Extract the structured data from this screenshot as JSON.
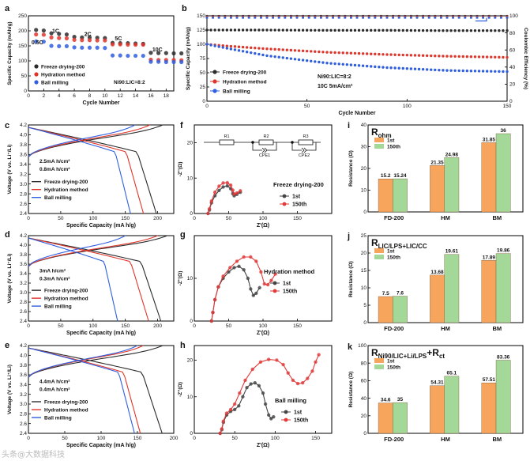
{
  "watermark": "头条@大数据科技",
  "colors": {
    "fd": "#2b2b2b",
    "hm": "#e0352b",
    "bm": "#2f5fe0",
    "ce": "#3a7be0",
    "bar1": "#f7a45c",
    "bar2": "#a3d898",
    "panel_f": "#444444",
    "panel_f2": "#e03a3a"
  },
  "chart_data": [
    {
      "id": "a",
      "type": "scatter",
      "ylabel": "Specific Capacity (mAh/g)",
      "xlabel": "Cycle Number",
      "xlim": [
        0,
        19
      ],
      "ylim": [
        0,
        250
      ],
      "xticks": [
        0,
        2,
        4,
        6,
        8,
        10,
        12,
        14,
        16,
        18
      ],
      "yticks": [
        0,
        50,
        100,
        150,
        200,
        250
      ],
      "rate_labels": [
        {
          "text": "0.5C",
          "x": 0.4,
          "y": 155
        },
        {
          "text": "1C",
          "x": 3.1,
          "y": 194
        },
        {
          "text": "2C",
          "x": 7.3,
          "y": 183
        },
        {
          "text": "5C",
          "x": 11.3,
          "y": 168
        },
        {
          "text": "10C",
          "x": 16.2,
          "y": 131
        }
      ],
      "annotation": "Ni90:LIC=8:2",
      "series": [
        {
          "name": "Freeze drying-200",
          "color_key": "fd",
          "values": [
            203,
            201,
            192,
            190,
            188,
            180,
            178,
            178,
            177,
            176,
            160,
            159,
            159,
            158,
            157,
            127,
            126,
            126,
            125,
            125
          ]
        },
        {
          "name": "Hydration method",
          "color_key": "hm",
          "values": [
            188,
            187,
            178,
            176,
            175,
            170,
            169,
            169,
            168,
            168,
            155,
            155,
            154,
            154,
            154,
            104,
            103,
            103,
            103,
            102
          ]
        },
        {
          "name": "Ball milling",
          "color_key": "bm",
          "values": [
            165,
            164,
            150,
            149,
            149,
            145,
            144,
            144,
            144,
            143,
            118,
            118,
            117,
            117,
            117,
            97,
            97,
            96,
            96,
            96
          ]
        }
      ]
    },
    {
      "id": "b",
      "type": "line",
      "ylabel": "Specific Capacity (mAh/g)",
      "ylabel_right": "Coulombic Efficiency (%)",
      "xlabel": "Cycle Number",
      "xlim": [
        0,
        150
      ],
      "ylim": [
        0,
        150
      ],
      "ylim_right": [
        0,
        100
      ],
      "xticks": [
        0,
        50,
        100,
        150
      ],
      "yticks": [
        0,
        25,
        50,
        75,
        100,
        125,
        150
      ],
      "yticks_right": [
        0,
        20,
        40,
        60,
        80,
        100
      ],
      "annotation": [
        "Ni90:LIC=8:2",
        "10C 5mA/cm²"
      ],
      "series": [
        {
          "name": "Freeze drying-200",
          "color_key": "fd",
          "points": [
            [
              0,
              125
            ],
            [
              30,
              125
            ],
            [
              60,
              124.5
            ],
            [
              90,
              124.5
            ],
            [
              120,
              124
            ],
            [
              150,
              124
            ]
          ]
        },
        {
          "name": "Hydration method",
          "color_key": "hm",
          "points": [
            [
              0,
              100
            ],
            [
              10,
              97
            ],
            [
              30,
              92
            ],
            [
              60,
              86
            ],
            [
              90,
              82
            ],
            [
              120,
              79
            ],
            [
              150,
              77
            ]
          ]
        },
        {
          "name": "Ball milling",
          "color_key": "bm",
          "points": [
            [
              0,
              100
            ],
            [
              10,
              93
            ],
            [
              30,
              80
            ],
            [
              60,
              67
            ],
            [
              90,
              59
            ],
            [
              120,
              54
            ],
            [
              150,
              52
            ]
          ]
        }
      ],
      "ce_series": [
        {
          "name": "Freeze drying-200",
          "color_key": "fd",
          "value": 99.7
        },
        {
          "name": "Hydration method",
          "color_key": "hm",
          "value": 99.5
        },
        {
          "name": "Ball milling",
          "color_key": "bm",
          "value": 99.0
        }
      ]
    },
    {
      "id": "c",
      "type": "line",
      "ylabel": "Voltage (V vs. Li⁺/Li)",
      "xlabel": "Specific Capacity (mA h/g)",
      "xlim": [
        0,
        225
      ],
      "ylim": [
        2.4,
        4.2
      ],
      "xticks": [
        0,
        50,
        100,
        150,
        200
      ],
      "yticks": [
        2.4,
        2.6,
        2.8,
        3.0,
        3.2,
        3.4,
        3.6,
        3.8,
        4.0,
        4.2
      ],
      "annotation": [
        "2.5mA h/cm²",
        "0.8mA h/cm²"
      ],
      "curves": [
        {
          "name": "Freeze drying-200",
          "color_key": "fd",
          "charge_cap": 208,
          "discharge_cap": 198
        },
        {
          "name": "Hydration method",
          "color_key": "hm",
          "charge_cap": 188,
          "discharge_cap": 178
        },
        {
          "name": "Ball milling",
          "color_key": "bm",
          "charge_cap": 165,
          "discharge_cap": 158
        }
      ]
    },
    {
      "id": "d",
      "type": "line",
      "ylabel": "Voltage (V vs. Li⁺/Li)",
      "xlabel": "Specific Capacity (mA h/g)",
      "xlim": [
        0,
        225
      ],
      "ylim": [
        2.4,
        4.2
      ],
      "xticks": [
        0,
        50,
        100,
        150,
        200
      ],
      "yticks": [
        2.4,
        2.6,
        2.8,
        3.0,
        3.2,
        3.4,
        3.6,
        3.8,
        4.0,
        4.2
      ],
      "annotation": [
        "3mA h/cm²",
        "0.3mA h/cm²"
      ],
      "curves": [
        {
          "name": "Freeze drying-200",
          "color_key": "fd",
          "charge_cap": 215,
          "discharge_cap": 205
        },
        {
          "name": "Hydration method",
          "color_key": "hm",
          "charge_cap": 200,
          "discharge_cap": 186
        },
        {
          "name": "Ball milling",
          "color_key": "bm",
          "charge_cap": 150,
          "discharge_cap": 138
        }
      ]
    },
    {
      "id": "e",
      "type": "line",
      "ylabel": "Voltage (V vs. Li⁺/Li)",
      "xlabel": "Specific Capacity (mA h/g)",
      "xlim": [
        0,
        200
      ],
      "ylim": [
        2.4,
        4.2
      ],
      "xticks": [
        0,
        50,
        100,
        150,
        200
      ],
      "yticks": [
        2.4,
        2.6,
        2.8,
        3.0,
        3.2,
        3.4,
        3.6,
        3.8,
        4.0,
        4.2
      ],
      "annotation": [
        "4.4mA h/cm²",
        "0.4mA h/cm²"
      ],
      "curves": [
        {
          "name": "Freeze drying-200",
          "color_key": "fd",
          "charge_cap": 185,
          "discharge_cap": 184
        },
        {
          "name": "Hydration method",
          "color_key": "hm",
          "charge_cap": 158,
          "discharge_cap": 154
        },
        {
          "name": "Ball milling",
          "color_key": "bm",
          "charge_cap": 150,
          "discharge_cap": 146
        }
      ]
    },
    {
      "id": "f",
      "type": "scatter",
      "ylabel": "-Z''(Ω)",
      "xlabel": "Z'(Ω)",
      "xlim": [
        0,
        200
      ],
      "ylim": [
        0,
        25
      ],
      "xticks": [
        0,
        50,
        100,
        150
      ],
      "yticks": [
        0,
        10,
        20
      ],
      "title": "Freeze drying-200",
      "circuit": {
        "elements": [
          "R1",
          "R2",
          "R3",
          "CPE1",
          "CPE2"
        ]
      },
      "series": [
        {
          "name": "1st",
          "color_key": "panel_f",
          "points": [
            [
              20,
              0
            ],
            [
              22,
              1
            ],
            [
              25,
              3
            ],
            [
              30,
              5
            ],
            [
              36,
              6.5
            ],
            [
              42,
              7.5
            ],
            [
              48,
              7.8
            ],
            [
              53,
              7
            ],
            [
              56,
              5.6
            ],
            [
              58,
              5
            ],
            [
              62,
              5.4
            ],
            [
              67,
              6
            ]
          ]
        },
        {
          "name": "150th",
          "color_key": "panel_f2",
          "points": [
            [
              20,
              0
            ],
            [
              22,
              1.3
            ],
            [
              25,
              3.5
            ],
            [
              30,
              6
            ],
            [
              36,
              7.7
            ],
            [
              42,
              8.6
            ],
            [
              48,
              8.7
            ],
            [
              53,
              8
            ],
            [
              56,
              6.6
            ],
            [
              58,
              5.5
            ],
            [
              62,
              5.8
            ],
            [
              67,
              6.4
            ]
          ]
        }
      ]
    },
    {
      "id": "g",
      "type": "scatter",
      "ylabel": "-Z''(Ω)",
      "xlabel": "Z'(Ω)",
      "xlim": [
        0,
        200
      ],
      "ylim": [
        0,
        20
      ],
      "xticks": [
        0,
        50,
        100,
        150
      ],
      "yticks": [
        0,
        10
      ],
      "title": "Hydration method",
      "series": [
        {
          "name": "1st",
          "color_key": "panel_f",
          "points": [
            [
              25,
              0
            ],
            [
              27,
              2
            ],
            [
              30,
              5
            ],
            [
              35,
              8
            ],
            [
              42,
              10
            ],
            [
              50,
              11.5
            ],
            [
              58,
              12.5
            ],
            [
              65,
              12.8
            ],
            [
              72,
              12
            ],
            [
              78,
              10
            ],
            [
              82,
              7.5
            ],
            [
              86,
              6
            ],
            [
              90,
              6.5
            ],
            [
              95,
              7.8
            ]
          ]
        },
        {
          "name": "150th",
          "color_key": "panel_f2",
          "points": [
            [
              25,
              0
            ],
            [
              27,
              2
            ],
            [
              30,
              5
            ],
            [
              35,
              8
            ],
            [
              42,
              10.5
            ],
            [
              52,
              12.5
            ],
            [
              62,
              14
            ],
            [
              72,
              15
            ],
            [
              82,
              15
            ],
            [
              90,
              14
            ],
            [
              97,
              11.5
            ],
            [
              102,
              8.7
            ],
            [
              107,
              8.5
            ],
            [
              112,
              9.5
            ],
            [
              118,
              11
            ]
          ]
        }
      ]
    },
    {
      "id": "h",
      "type": "scatter",
      "ylabel": "-Z''(Ω)",
      "xlabel": "Z'(Ω)",
      "xlim": [
        0,
        170
      ],
      "ylim": [
        0,
        24
      ],
      "xticks": [
        0,
        50,
        100,
        150
      ],
      "yticks": [
        0,
        10,
        20
      ],
      "title": "Ball milling",
      "series": [
        {
          "name": "1st",
          "color_key": "panel_f",
          "points": [
            [
              32,
              0
            ],
            [
              34,
              1
            ],
            [
              36,
              3
            ],
            [
              40,
              5
            ],
            [
              45,
              6
            ],
            [
              50,
              6.5
            ],
            [
              55,
              7.5
            ],
            [
              60,
              10
            ],
            [
              65,
              12.5
            ],
            [
              70,
              13.5
            ],
            [
              75,
              13.8
            ],
            [
              80,
              13
            ],
            [
              85,
              11
            ],
            [
              88,
              8
            ],
            [
              92,
              5
            ],
            [
              95,
              4
            ],
            [
              98,
              4.5
            ]
          ]
        },
        {
          "name": "150th",
          "color_key": "panel_f2",
          "points": [
            [
              32,
              0
            ],
            [
              34,
              1.2
            ],
            [
              36,
              3.3
            ],
            [
              40,
              5.5
            ],
            [
              45,
              6.5
            ],
            [
              50,
              8
            ],
            [
              56,
              11
            ],
            [
              63,
              14.5
            ],
            [
              72,
              17.5
            ],
            [
              82,
              19.5
            ],
            [
              92,
              20.2
            ],
            [
              102,
              20
            ],
            [
              110,
              18.8
            ],
            [
              116,
              16.5
            ],
            [
              122,
              14.5
            ],
            [
              128,
              13.6
            ],
            [
              134,
              13.8
            ],
            [
              140,
              15
            ],
            [
              146,
              17
            ],
            [
              150,
              19.5
            ],
            [
              154,
              21.5
            ]
          ]
        }
      ]
    },
    {
      "id": "i",
      "type": "bar",
      "title": "R",
      "title_sub": "ohm",
      "ylabel": "Resistance (Ω)",
      "categories": [
        "FD-200",
        "HM",
        "BM"
      ],
      "ylim": [
        0,
        40
      ],
      "yticks": [
        0,
        10,
        20,
        30,
        40
      ],
      "series": [
        {
          "name": "1st",
          "color_key": "bar1",
          "values": [
            15.2,
            21.35,
            31.85
          ],
          "labels": [
            "15.2",
            "21.35",
            "31.85"
          ]
        },
        {
          "name": "150th",
          "color_key": "bar2",
          "values": [
            15.24,
            24.98,
            36
          ],
          "labels": [
            "15.24",
            "24.98",
            "36"
          ]
        }
      ]
    },
    {
      "id": "j",
      "type": "bar",
      "title": "R",
      "title_sub": "LIC/LPS+LIC/CC",
      "ylabel": "Resistance (Ω)",
      "categories": [
        "FD-200",
        "HM",
        "BM"
      ],
      "ylim": [
        0,
        25
      ],
      "yticks": [
        0,
        5,
        10,
        15,
        20,
        25
      ],
      "series": [
        {
          "name": "1st",
          "color_key": "bar1",
          "values": [
            7.5,
            13.68,
            17.89
          ],
          "labels": [
            "7.5",
            "13.68",
            "17.89"
          ]
        },
        {
          "name": "150th",
          "color_key": "bar2",
          "values": [
            7.6,
            19.61,
            19.86
          ],
          "labels": [
            "7.6",
            "19.61",
            "19.86"
          ]
        }
      ]
    },
    {
      "id": "k",
      "type": "bar",
      "title": "R",
      "title_sub": "Ni90/LIC+Li/LPS",
      "title_tail": "+R",
      "title_sub2": "ct",
      "ylabel": "Resistance (Ω)",
      "categories": [
        "FD-200",
        "HM",
        "BM"
      ],
      "ylim": [
        0,
        100
      ],
      "yticks": [
        0,
        20,
        40,
        60,
        80,
        100
      ],
      "series": [
        {
          "name": "1st",
          "color_key": "bar1",
          "values": [
            34.6,
            54.31,
            57.51
          ],
          "labels": [
            "34.6",
            "54.31",
            "57.51"
          ]
        },
        {
          "name": "150th",
          "color_key": "bar2",
          "values": [
            35,
            65.1,
            83.36
          ],
          "labels": [
            "35",
            "65.1",
            "83.36"
          ]
        }
      ]
    }
  ]
}
